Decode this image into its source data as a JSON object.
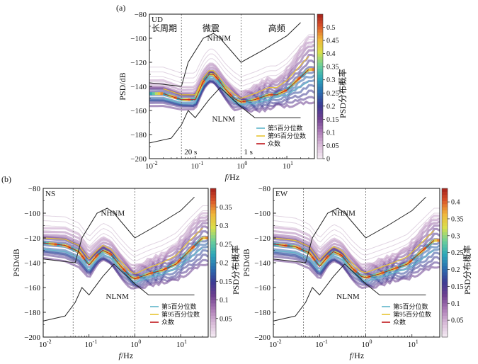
{
  "figure": {
    "panel_labels": [
      "(a)",
      "(b)"
    ],
    "legend_entries": [
      "第5百分位数",
      "第95百分位数",
      "众数"
    ],
    "legend_colors": [
      "#5fb6c9",
      "#e8c531",
      "#c0161b"
    ],
    "cmap": [
      "#f2e7f1",
      "#d6b7d6",
      "#a978b4",
      "#6c3f8f",
      "#3b3b93",
      "#2a6fb0",
      "#2fa7b9",
      "#6ccf9a",
      "#d9e04a",
      "#f0b53a",
      "#d9532a",
      "#9e1b1b"
    ]
  },
  "chart_data": [
    {
      "id": "UD",
      "type": "heatmap",
      "title": "",
      "component": "UD",
      "xlabel": "f/Hz",
      "ylabel": "PSD/dB",
      "colorbar_label": "PSD分布概率",
      "x_scale": "log",
      "xlim": [
        0.01,
        40
      ],
      "ylim": [
        -200,
        -80
      ],
      "yticks": [
        -80,
        -100,
        -120,
        -140,
        -160,
        -180,
        -200
      ],
      "xticks": [
        0.01,
        0.1,
        1,
        10
      ],
      "xtick_labels": [
        "10-2",
        "10-1",
        "100",
        "101"
      ],
      "colorbar_range": [
        0,
        0.55
      ],
      "colorbar_ticks": [
        0,
        0.05,
        0.1,
        0.15,
        0.2,
        0.25,
        0.3,
        0.35,
        0.4,
        0.45,
        0.5
      ],
      "band_labels": [
        "长周期",
        "微震",
        "高频"
      ],
      "vlines": [
        {
          "x": 0.05,
          "label": "20 s"
        },
        {
          "x": 1,
          "label": "1 s"
        }
      ],
      "curve_labels": [
        "NHNM",
        "NLNM"
      ],
      "nhnm": {
        "x": [
          0.01,
          0.05,
          0.07,
          0.15,
          0.25,
          0.35,
          1.0,
          3.0,
          10,
          20
        ],
        "y": [
          -137,
          -140,
          -120,
          -100,
          -96,
          -100,
          -120,
          -110,
          -98,
          -87
        ]
      },
      "nlnm": {
        "x": [
          0.01,
          0.03,
          0.05,
          0.07,
          0.1,
          0.2,
          0.35,
          1.0,
          2.0,
          10,
          20
        ],
        "y": [
          -187,
          -183,
          -172,
          -160,
          -166,
          -151,
          -141,
          -157,
          -166,
          -166,
          -166
        ]
      },
      "median": {
        "x": [
          0.02,
          0.05,
          0.1,
          0.15,
          0.2,
          0.25,
          0.3,
          0.45,
          0.7,
          1.0,
          2.0,
          4.0,
          6.0,
          10,
          30
        ],
        "y": [
          -146,
          -151,
          -151,
          -136,
          -130,
          -130,
          -133,
          -142,
          -150,
          -153,
          -151,
          -147,
          -147,
          -143,
          -126
        ]
      },
      "p5": {
        "x": [
          0.02,
          0.05,
          0.1,
          0.15,
          0.2,
          0.25,
          0.3,
          0.45,
          0.7,
          1.0,
          2.0,
          4.0,
          6.0,
          10,
          30
        ],
        "y": [
          -150,
          -154,
          -154,
          -139,
          -133,
          -133,
          -136,
          -145,
          -153,
          -155,
          -154,
          -151,
          -149,
          -147,
          -136
        ]
      },
      "p95": {
        "x": [
          0.02,
          0.05,
          0.1,
          0.15,
          0.2,
          0.25,
          0.3,
          0.45,
          0.7,
          1.0,
          2.0,
          4.0,
          6.0,
          10,
          30
        ],
        "y": [
          -142,
          -147,
          -147,
          -133,
          -127,
          -127,
          -130,
          -139,
          -146,
          -150,
          -146,
          -141,
          -141,
          -135,
          -115
        ]
      },
      "legend": [
        "第5百分位数",
        "第95百分位数",
        "众数"
      ]
    },
    {
      "id": "NS",
      "type": "heatmap",
      "title": "",
      "component": "NS",
      "xlabel": "f/Hz",
      "ylabel": "PSD/dB",
      "colorbar_label": "PSD分布概率",
      "x_scale": "log",
      "xlim": [
        0.01,
        40
      ],
      "ylim": [
        -200,
        -80
      ],
      "yticks": [
        -80,
        -100,
        -120,
        -140,
        -160,
        -180,
        -200
      ],
      "xticks": [
        0.01,
        0.1,
        1,
        10
      ],
      "xtick_labels": [
        "10-2",
        "10-1",
        "100",
        "101"
      ],
      "colorbar_range": [
        0,
        0.4
      ],
      "colorbar_ticks": [
        0.05,
        0.1,
        0.15,
        0.2,
        0.25,
        0.3,
        0.35
      ],
      "vlines": [
        {
          "x": 0.045,
          "label": ""
        },
        {
          "x": 1,
          "label": ""
        }
      ],
      "curve_labels": [
        "NHNM",
        "NLNM"
      ],
      "nhnm": {
        "x": [
          0.01,
          0.05,
          0.07,
          0.15,
          0.25,
          0.35,
          1.0,
          3.0,
          10,
          20
        ],
        "y": [
          -137,
          -140,
          -120,
          -100,
          -96,
          -100,
          -120,
          -110,
          -98,
          -87
        ]
      },
      "nlnm": {
        "x": [
          0.01,
          0.03,
          0.05,
          0.07,
          0.1,
          0.2,
          0.35,
          1.0,
          2.0,
          10,
          20
        ],
        "y": [
          -187,
          -183,
          -172,
          -160,
          -166,
          -151,
          -141,
          -157,
          -166,
          -166,
          -166
        ]
      },
      "median": {
        "x": [
          0.01,
          0.03,
          0.06,
          0.1,
          0.15,
          0.2,
          0.3,
          0.5,
          0.8,
          1.0,
          2.0,
          4.0,
          8.0,
          15,
          30
        ],
        "y": [
          -124,
          -126,
          -131,
          -142,
          -134,
          -130,
          -133,
          -143,
          -151,
          -153,
          -149,
          -146,
          -141,
          -131,
          -120
        ]
      },
      "p5": {
        "x": [
          0.01,
          0.03,
          0.06,
          0.1,
          0.15,
          0.2,
          0.3,
          0.5,
          0.8,
          1.0,
          2.0,
          4.0,
          8.0,
          15,
          30
        ],
        "y": [
          -129,
          -131,
          -136,
          -146,
          -137,
          -133,
          -136,
          -146,
          -154,
          -156,
          -152,
          -149,
          -145,
          -137,
          -128
        ]
      },
      "p95": {
        "x": [
          0.01,
          0.03,
          0.06,
          0.1,
          0.15,
          0.2,
          0.3,
          0.5,
          0.8,
          1.0,
          2.0,
          4.0,
          8.0,
          15,
          30
        ],
        "y": [
          -120,
          -121,
          -126,
          -137,
          -130,
          -126,
          -129,
          -139,
          -147,
          -149,
          -144,
          -140,
          -134,
          -123,
          -112
        ]
      },
      "legend": [
        "第5百分位数",
        "第95百分位数",
        "众数"
      ]
    },
    {
      "id": "EW",
      "type": "heatmap",
      "title": "",
      "component": "EW",
      "xlabel": "f/Hz",
      "ylabel": "PSD/dB",
      "colorbar_label": "PSD分布概率",
      "x_scale": "log",
      "xlim": [
        0.01,
        40
      ],
      "ylim": [
        -200,
        -80
      ],
      "yticks": [
        -80,
        -100,
        -120,
        -140,
        -160,
        -180,
        -200
      ],
      "xticks": [
        0.01,
        0.1,
        1,
        10
      ],
      "xtick_labels": [
        "10-2",
        "10-1",
        "100",
        "101"
      ],
      "colorbar_range": [
        0,
        0.44
      ],
      "colorbar_ticks": [
        0.05,
        0.1,
        0.15,
        0.2,
        0.25,
        0.3,
        0.35,
        0.4
      ],
      "vlines": [
        {
          "x": 0.045,
          "label": ""
        },
        {
          "x": 1,
          "label": ""
        }
      ],
      "curve_labels": [
        "NHNM",
        "NLNM"
      ],
      "nhnm": {
        "x": [
          0.01,
          0.05,
          0.07,
          0.15,
          0.25,
          0.35,
          1.0,
          3.0,
          10,
          20
        ],
        "y": [
          -137,
          -140,
          -120,
          -100,
          -96,
          -100,
          -120,
          -110,
          -98,
          -87
        ]
      },
      "nlnm": {
        "x": [
          0.01,
          0.03,
          0.05,
          0.07,
          0.1,
          0.2,
          0.35,
          1.0,
          2.0,
          10,
          20
        ],
        "y": [
          -187,
          -183,
          -172,
          -160,
          -166,
          -151,
          -141,
          -157,
          -166,
          -166,
          -166
        ]
      },
      "median": {
        "x": [
          0.01,
          0.03,
          0.06,
          0.1,
          0.15,
          0.2,
          0.3,
          0.5,
          0.8,
          1.0,
          2.0,
          4.0,
          8.0,
          15,
          30
        ],
        "y": [
          -125,
          -127,
          -132,
          -143,
          -135,
          -131,
          -134,
          -144,
          -151,
          -152,
          -149,
          -145,
          -141,
          -132,
          -122
        ]
      },
      "p5": {
        "x": [
          0.01,
          0.03,
          0.06,
          0.1,
          0.15,
          0.2,
          0.3,
          0.5,
          0.8,
          1.0,
          2.0,
          4.0,
          8.0,
          15,
          30
        ],
        "y": [
          -130,
          -132,
          -137,
          -147,
          -138,
          -134,
          -137,
          -147,
          -154,
          -155,
          -152,
          -148,
          -145,
          -138,
          -130
        ]
      },
      "p95": {
        "x": [
          0.01,
          0.03,
          0.06,
          0.1,
          0.15,
          0.2,
          0.3,
          0.5,
          0.8,
          1.0,
          2.0,
          4.0,
          8.0,
          15,
          30
        ],
        "y": [
          -120,
          -122,
          -127,
          -138,
          -131,
          -127,
          -130,
          -140,
          -147,
          -148,
          -144,
          -140,
          -135,
          -125,
          -114
        ]
      },
      "legend": [
        "第5百分位数",
        "第95百分位数",
        "众数"
      ]
    }
  ]
}
